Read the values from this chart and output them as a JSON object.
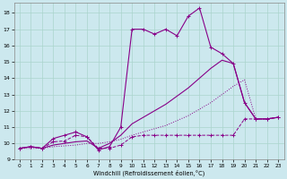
{
  "xlabel": "Windchill (Refroidissement éolien,°C)",
  "bg_color": "#cce8ee",
  "grid_color": "#aad4cc",
  "line_color": "#880088",
  "x_ticks": [
    0,
    1,
    2,
    3,
    4,
    5,
    6,
    7,
    8,
    9,
    10,
    11,
    12,
    13,
    14,
    15,
    16,
    17,
    18,
    19,
    20,
    21,
    22,
    23
  ],
  "y_ticks": [
    9,
    10,
    11,
    12,
    13,
    14,
    15,
    16,
    17,
    18
  ],
  "xlim": [
    -0.5,
    23.5
  ],
  "ylim": [
    9.0,
    18.6
  ],
  "series_A_x": [
    0,
    1,
    2,
    3,
    4,
    5,
    6,
    7,
    8,
    9,
    10,
    11,
    12,
    13,
    14,
    15,
    16,
    17,
    18,
    19,
    20,
    21,
    22,
    23
  ],
  "series_A_y": [
    9.7,
    9.8,
    9.7,
    10.1,
    10.15,
    10.5,
    10.4,
    9.7,
    9.7,
    9.9,
    10.4,
    10.5,
    10.5,
    10.5,
    10.5,
    10.5,
    10.5,
    10.5,
    10.5,
    10.5,
    11.5,
    11.5,
    11.5,
    11.6
  ],
  "series_B_x": [
    0,
    1,
    2,
    3,
    4,
    5,
    6,
    7,
    8,
    9,
    10,
    11,
    12,
    13,
    14,
    15,
    16,
    17,
    18,
    19,
    20,
    21,
    22,
    23
  ],
  "series_B_y": [
    9.7,
    9.7,
    9.7,
    9.8,
    9.85,
    9.9,
    10.0,
    10.0,
    10.1,
    10.25,
    10.5,
    10.7,
    10.9,
    11.1,
    11.4,
    11.7,
    12.1,
    12.5,
    13.0,
    13.5,
    13.9,
    11.5,
    11.5,
    11.6
  ],
  "series_C_x": [
    0,
    1,
    2,
    3,
    4,
    5,
    6,
    7,
    8,
    9,
    10,
    11,
    12,
    13,
    14,
    15,
    16,
    17,
    18,
    19,
    20,
    21,
    22,
    23
  ],
  "series_C_y": [
    9.7,
    9.8,
    9.7,
    10.3,
    10.5,
    10.7,
    10.4,
    9.6,
    9.8,
    11.0,
    17.0,
    17.0,
    16.7,
    17.0,
    16.6,
    17.8,
    18.3,
    15.9,
    15.5,
    14.9,
    12.5,
    11.5,
    11.5,
    11.6
  ],
  "series_D_x": [
    0,
    1,
    2,
    3,
    4,
    5,
    6,
    7,
    8,
    9,
    10,
    11,
    12,
    13,
    14,
    15,
    16,
    17,
    18,
    19,
    20,
    21,
    22,
    23
  ],
  "series_D_y": [
    9.7,
    9.8,
    9.7,
    9.9,
    10.0,
    10.1,
    10.15,
    9.7,
    10.0,
    10.5,
    11.2,
    11.6,
    12.0,
    12.4,
    12.9,
    13.4,
    14.0,
    14.6,
    15.1,
    14.9,
    12.5,
    11.5,
    11.5,
    11.6
  ]
}
